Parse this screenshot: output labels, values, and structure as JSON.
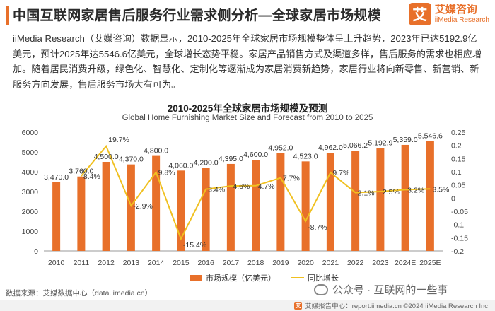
{
  "header": {
    "title": "中国互联网家居售后服务行业需求侧分析—全球家居市场规模",
    "logo_mark": "艾",
    "logo_cn": "艾媒咨询",
    "logo_en": "iiMedia Research"
  },
  "description": "iiMedia Research（艾媒咨询）数据显示，2010-2025年全球家居市场规模整体呈上升趋势，2023年已达5192.9亿美元，预计2025年达5546.6亿美元，全球增长态势平稳。家居产品销售方式及渠道多样，售后服务的需求也相应增加。随着居民消费升级，绿色化、智慧化、定制化等逐渐成为家居消费新趋势，家居行业将向新零售、新营销、新服务方向发展，售后服务市场大有可为。",
  "chart_data": {
    "type": "bar",
    "title": "2010-2025年全球家居市场规模及预测",
    "subtitle": "Global Home Furnishing Market Size and Forecast from 2010 to 2025",
    "categories": [
      "2010",
      "2011",
      "2012",
      "2013",
      "2014",
      "2015",
      "2016",
      "2017",
      "2018",
      "2019",
      "2020",
      "2021",
      "2022",
      "2023",
      "2024E",
      "2025E"
    ],
    "series": [
      {
        "name": "市场规模（亿美元）",
        "type": "bar",
        "axis": "left",
        "color": "#e8702a",
        "values": [
          3470.0,
          3760.0,
          4500.0,
          4370.0,
          4800.0,
          4060.0,
          4200.0,
          4395.0,
          4600.0,
          4952.0,
          4523.0,
          4962.0,
          5066.2,
          5192.9,
          5359.0,
          5546.6
        ],
        "labels": [
          "3,470.0",
          "3,760.0",
          "4,500.0",
          "4,370.0",
          "4,800.0",
          "4,060.0",
          "4,200.0",
          "4,395.0",
          "4,600.0",
          "4,952.0",
          "4,523.0",
          "4,962.0",
          "5,066.2",
          "5,192.9",
          "5,359.0",
          "5,546.6"
        ]
      },
      {
        "name": "同比增长",
        "type": "line",
        "axis": "right",
        "color": "#f0c020",
        "values": [
          null,
          0.084,
          0.197,
          -0.029,
          0.098,
          -0.154,
          0.034,
          0.046,
          0.047,
          0.077,
          -0.087,
          0.097,
          0.021,
          0.025,
          0.032,
          0.035
        ],
        "labels": [
          "",
          "8.4%",
          "19.7%",
          "-2.9%",
          "9.8%",
          "-15.4%",
          "3.4%",
          "4.6%",
          "4.7%",
          "7.7%",
          "-8.7%",
          "9.7%",
          "2.1%",
          "2.5%",
          "3.2%",
          "3.5%"
        ]
      }
    ],
    "ylim_left": [
      0,
      6000
    ],
    "yticks_left": [
      "0",
      "1000",
      "2000",
      "3000",
      "4000",
      "5000",
      "6000"
    ],
    "ylim_right": [
      -0.2,
      0.25
    ],
    "yticks_right": [
      "-0.2",
      "-0.15",
      "-0.1",
      "-0.05",
      "0",
      "0.05",
      "0.1",
      "0.15",
      "0.2",
      "0.25"
    ],
    "grid": false,
    "legend_position": "bottom"
  },
  "legend": {
    "bar_label": "市场规模（亿美元）",
    "line_label": "同比增长"
  },
  "source": "数据来源：艾媒数据中心（data.iimedia.cn）",
  "watermark": "公众号 · 互联网的一些事",
  "footer": {
    "mark": "艾",
    "text": "艾媒报告中心：report.iimedia.cn ©2024 iiMedia Research Inc"
  },
  "colors": {
    "accent": "#e8702a",
    "line": "#f0c020"
  }
}
